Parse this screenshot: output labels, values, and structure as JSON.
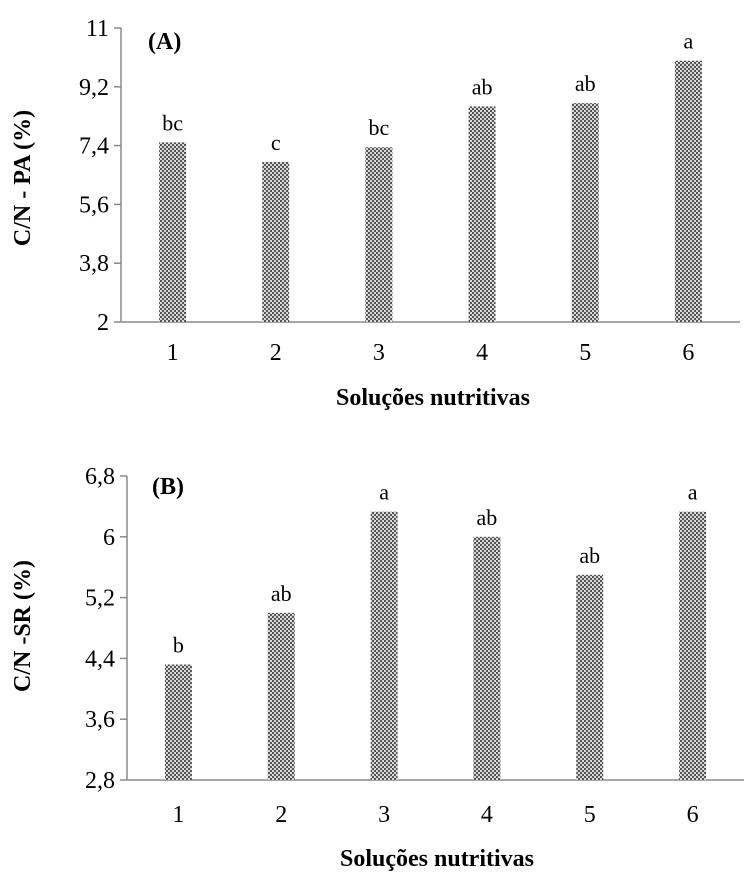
{
  "colors": {
    "bar_pattern_dark": "#555555",
    "bar_pattern_light": "#d8d8d8",
    "axis": "#8a8a8a",
    "text": "#000000"
  },
  "chart_data": [
    {
      "type": "bar",
      "panel_label": "(A)",
      "categories": [
        "1",
        "2",
        "3",
        "4",
        "5",
        "6"
      ],
      "values": [
        7.5,
        6.9,
        7.35,
        8.6,
        8.7,
        10.0
      ],
      "bar_labels": [
        "bc",
        "c",
        "bc",
        "ab",
        "ab",
        "a"
      ],
      "title": "",
      "xlabel": "Soluções nutritivas",
      "ylabel": "C/N - PA (%)",
      "ylim": [
        2,
        11
      ],
      "yticks": [
        2,
        3.8,
        5.6,
        7.4,
        9.2,
        11
      ],
      "ytick_labels": [
        "2",
        "3,8",
        "5,6",
        "7,4",
        "9,2",
        "11"
      ],
      "grid": false,
      "legend": "none"
    },
    {
      "type": "bar",
      "panel_label": "(B)",
      "categories": [
        "1",
        "2",
        "3",
        "4",
        "5",
        "6"
      ],
      "values": [
        4.32,
        5.0,
        6.33,
        6.0,
        5.5,
        6.33
      ],
      "bar_labels": [
        "b",
        "ab",
        "a",
        "ab",
        "ab",
        "a"
      ],
      "title": "",
      "xlabel": "Soluções nutritivas",
      "ylabel": "C/N -SR (%)",
      "ylim": [
        2.8,
        6.8
      ],
      "yticks": [
        2.8,
        3.6,
        4.4,
        5.2,
        6.0,
        6.8
      ],
      "ytick_labels": [
        "2,8",
        "3,6",
        "4,4",
        "5,2",
        "6",
        "6,8"
      ],
      "grid": false,
      "legend": "none"
    }
  ]
}
